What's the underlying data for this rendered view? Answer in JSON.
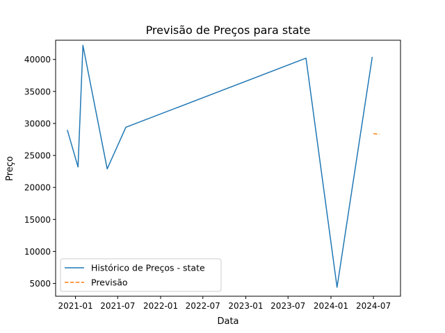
{
  "chart_data": {
    "type": "line",
    "title": "Previsão de Preços para state",
    "xlabel": "Data",
    "ylabel": "Preço",
    "xlim": [
      "2020-10-08",
      "2024-10-25"
    ],
    "ylim": [
      3000,
      43000
    ],
    "x_ticks": [
      "2021-01",
      "2021-07",
      "2022-01",
      "2022-07",
      "2023-01",
      "2023-07",
      "2024-01",
      "2024-07"
    ],
    "y_ticks": [
      5000,
      10000,
      15000,
      20000,
      25000,
      30000,
      35000,
      40000
    ],
    "grid": false,
    "legend_position": "lower-left",
    "series": [
      {
        "name": "Histórico de Preços - state",
        "color": "#1f77b4",
        "style": "solid",
        "points": [
          {
            "x": "2020-11-27",
            "y": 29000
          },
          {
            "x": "2021-01-12",
            "y": 23200
          },
          {
            "x": "2021-02-02",
            "y": 42200
          },
          {
            "x": "2021-05-17",
            "y": 22900
          },
          {
            "x": "2021-08-05",
            "y": 29400
          },
          {
            "x": "2023-09-16",
            "y": 40200
          },
          {
            "x": "2024-01-27",
            "y": 4400
          },
          {
            "x": "2024-06-26",
            "y": 40400
          }
        ]
      },
      {
        "name": "Previsão",
        "color": "#ff7f0e",
        "style": "dashed",
        "points": [
          {
            "x": "2024-07-01",
            "y": 28400
          },
          {
            "x": "2024-07-26",
            "y": 28300
          }
        ]
      }
    ]
  }
}
